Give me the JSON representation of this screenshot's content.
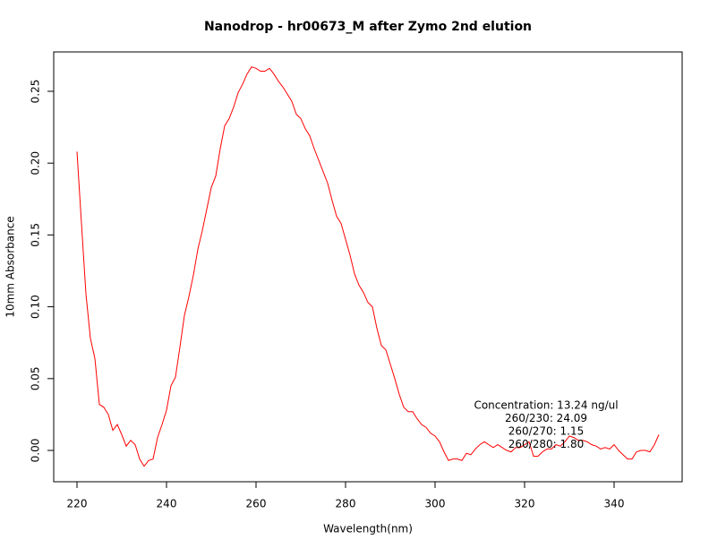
{
  "chart_data": {
    "type": "line",
    "title": "Nanodrop - hr00673_M after Zymo 2nd elution",
    "xlabel": "Wavelength(nm)",
    "ylabel": "10mm Absorbance",
    "annotations": [
      "Concentration: 13.24 ng/ul",
      "260/230: 24.09",
      "260/270: 1.15",
      "260/280: 1.80"
    ],
    "color": "#ff0000",
    "x": [
      220,
      221,
      222,
      223,
      224,
      225,
      226,
      227,
      228,
      229,
      230,
      231,
      232,
      233,
      234,
      235,
      236,
      237,
      238,
      239,
      240,
      241,
      242,
      243,
      244,
      245,
      246,
      247,
      248,
      249,
      250,
      251,
      252,
      253,
      254,
      255,
      256,
      257,
      258,
      259,
      260,
      261,
      262,
      263,
      264,
      265,
      266,
      267,
      268,
      269,
      270,
      271,
      272,
      273,
      274,
      275,
      276,
      277,
      278,
      279,
      280,
      281,
      282,
      283,
      284,
      285,
      286,
      287,
      288,
      289,
      290,
      291,
      292,
      293,
      294,
      295,
      296,
      297,
      298,
      299,
      300,
      301,
      302,
      303,
      304,
      305,
      306,
      307,
      308,
      309,
      310,
      311,
      312,
      313,
      314,
      315,
      316,
      317,
      318,
      319,
      320,
      321,
      322,
      323,
      324,
      325,
      326,
      327,
      328,
      329,
      330,
      331,
      332,
      333,
      334,
      335,
      336,
      337,
      338,
      339,
      340,
      341,
      342,
      343,
      344,
      345,
      346,
      347,
      348,
      349,
      350
    ],
    "values": [
      0.208,
      0.158,
      0.109,
      0.078,
      0.064,
      0.032,
      0.03,
      0.025,
      0.014,
      0.018,
      0.011,
      0.003,
      0.007,
      0.004,
      -0.006,
      -0.011,
      -0.007,
      -0.006,
      0.009,
      0.018,
      0.028,
      0.045,
      0.051,
      0.072,
      0.094,
      0.107,
      0.122,
      0.14,
      0.153,
      0.168,
      0.183,
      0.191,
      0.21,
      0.226,
      0.231,
      0.239,
      0.249,
      0.255,
      0.262,
      0.267,
      0.266,
      0.264,
      0.264,
      0.266,
      0.262,
      0.257,
      0.253,
      0.248,
      0.243,
      0.234,
      0.231,
      0.224,
      0.219,
      0.21,
      0.202,
      0.194,
      0.186,
      0.174,
      0.163,
      0.158,
      0.147,
      0.136,
      0.123,
      0.115,
      0.11,
      0.103,
      0.1,
      0.085,
      0.073,
      0.07,
      0.06,
      0.05,
      0.039,
      0.03,
      0.027,
      0.027,
      0.022,
      0.018,
      0.016,
      0.012,
      0.01,
      0.006,
      -0.001,
      -0.007,
      -0.006,
      -0.006,
      -0.007,
      -0.002,
      -0.003,
      0.001,
      0.004,
      0.006,
      0.004,
      0.002,
      0.004,
      0.002,
      0.0,
      -0.001,
      0.002,
      0.002,
      0.004,
      0.006,
      -0.004,
      -0.004,
      -0.001,
      0.001,
      0.001,
      0.004,
      0.003,
      0.006,
      0.01,
      0.009,
      0.007,
      0.007,
      0.006,
      0.004,
      0.003,
      0.001,
      0.002,
      0.001,
      0.004,
      0.0,
      -0.003,
      -0.006,
      -0.006,
      -0.001,
      0.0,
      0.0,
      -0.001,
      0.004,
      0.011
    ],
    "xlim": [
      214.8,
      355.2
    ],
    "ylim": [
      -0.0218,
      0.2774
    ],
    "xticks": [
      220,
      240,
      260,
      280,
      300,
      320,
      340
    ],
    "yticks": [
      {
        "value": 0,
        "label": "0.00"
      },
      {
        "value": 0.05,
        "label": "0.05"
      },
      {
        "value": 0.1,
        "label": "0.10"
      },
      {
        "value": 0.15,
        "label": "0.15"
      },
      {
        "value": 0.2,
        "label": "0.20"
      },
      {
        "value": 0.25,
        "label": "0.25"
      }
    ]
  }
}
